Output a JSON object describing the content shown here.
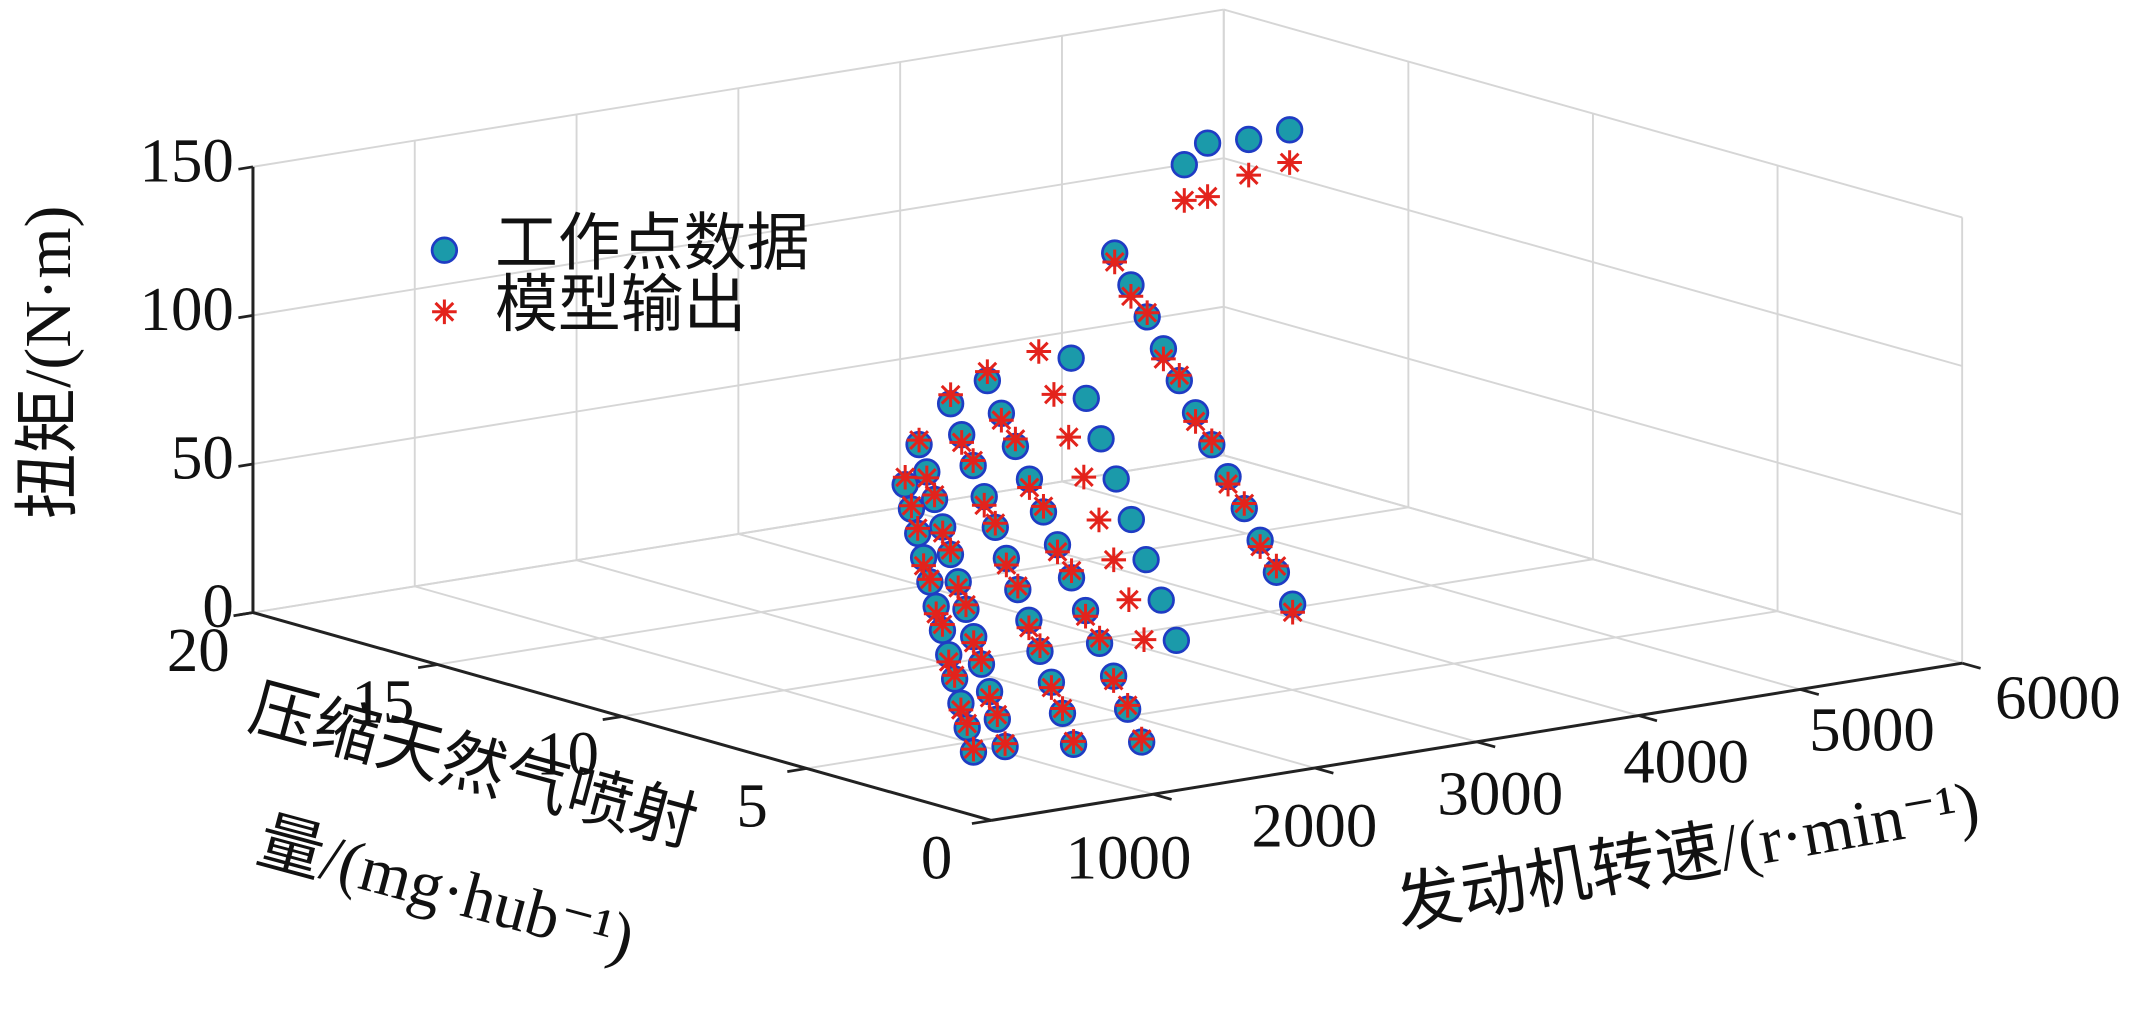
{
  "chart_data": {
    "type": "scatter3d",
    "xlabel": "发动机转速/(r·min⁻¹)",
    "ylabel": [
      "压缩天然气喷射",
      "量/(mg·hub⁻¹)"
    ],
    "zlabel": "扭矩/(N·m)",
    "xlim": [
      0,
      6000
    ],
    "ylim": [
      0,
      20
    ],
    "zlim": [
      0,
      150
    ],
    "xticks": [
      1000,
      2000,
      3000,
      4000,
      5000,
      6000
    ],
    "yticks": [
      0,
      5,
      10,
      15,
      20
    ],
    "zticks": [
      0,
      50,
      100,
      150
    ],
    "grid": true,
    "legend": "upper left",
    "series": [
      {
        "name": "工作点数据",
        "marker": "o",
        "color": "#1b9aaa",
        "edgecolor": "#1f3cc4",
        "x": [
          800,
          800,
          800,
          800,
          800,
          800,
          800,
          800,
          800,
          800,
          800,
          800,
          1000,
          1000,
          1000,
          1000,
          1000,
          1000,
          1000,
          1000,
          1000,
          1000,
          1000,
          1000,
          1300,
          1300,
          1300,
          1300,
          1300,
          1300,
          1300,
          1300,
          1300,
          1300,
          1300,
          1300,
          1600,
          1600,
          1600,
          1600,
          1600,
          1600,
          1600,
          1600,
          1600,
          1600,
          1600,
          1600,
          2200,
          2200,
          2200,
          2200,
          2200,
          2200,
          2200,
          2200,
          2800,
          2800,
          2800,
          2800,
          2800,
          2800,
          2800,
          2800,
          2800,
          2800,
          2800,
          2800,
          4387,
          4531,
          4785,
          5038
        ],
        "y": [
          5.84,
          5.67,
          5.5,
          5.34,
          5.17,
          5.0,
          4.83,
          4.66,
          4.5,
          4.33,
          4.16,
          3.99,
          6.34,
          6.13,
          5.92,
          5.7,
          5.49,
          5.28,
          5.07,
          4.86,
          4.65,
          4.43,
          4.22,
          4.01,
          6.8,
          6.5,
          6.19,
          5.89,
          5.59,
          5.29,
          4.98,
          4.68,
          4.38,
          4.07,
          3.77,
          3.47,
          7.12,
          6.74,
          6.36,
          5.98,
          5.6,
          5.22,
          4.84,
          4.46,
          4.08,
          3.7,
          3.32,
          2.94,
          7.48,
          7.07,
          6.67,
          6.26,
          5.85,
          5.45,
          5.04,
          4.63,
          8.93,
          8.49,
          8.05,
          7.61,
          7.18,
          6.74,
          6.3,
          5.86,
          5.42,
          4.99,
          4.55,
          4.11,
          14,
          14,
          14,
          14
        ],
        "z": [
          85.5,
          77.9,
          70.3,
          62.7,
          55.1,
          47.5,
          40.0,
          32.4,
          24.8,
          17.2,
          9.6,
          2.0,
          95.5,
          87.0,
          78.5,
          70.0,
          61.5,
          53.0,
          44.5,
          36.0,
          27.5,
          19.0,
          10.5,
          2.0,
          105.0,
          95.6,
          86.3,
          76.9,
          67.6,
          58.2,
          48.8,
          39.5,
          30.1,
          20.8,
          11.4,
          2.0,
          109.0,
          99.3,
          89.5,
          79.8,
          70.1,
          60.4,
          50.6,
          40.9,
          31.2,
          21.5,
          11.7,
          2.0,
          110.0,
          97.9,
          85.7,
          73.6,
          61.4,
          49.3,
          37.1,
          25.0,
          135.0,
          125.8,
          116.6,
          107.4,
          98.2,
          88.9,
          79.7,
          70.5,
          61.3,
          52.1,
          42.9,
          33.7,
          133,
          139,
          138,
          139
        ]
      },
      {
        "name": "模型输出",
        "marker": "*",
        "color": "#e3231c",
        "x": [
          800,
          800,
          800,
          800,
          800,
          800,
          800,
          800,
          800,
          800,
          800,
          800,
          1000,
          1000,
          1000,
          1000,
          1000,
          1000,
          1000,
          1000,
          1000,
          1000,
          1000,
          1000,
          1300,
          1300,
          1300,
          1300,
          1300,
          1300,
          1300,
          1300,
          1300,
          1300,
          1300,
          1300,
          1600,
          1600,
          1600,
          1600,
          1600,
          1600,
          1600,
          1600,
          1600,
          1600,
          1600,
          1600,
          2000,
          2000,
          2000,
          2000,
          2000,
          2000,
          2000,
          2000,
          2800,
          2800,
          2800,
          2800,
          2800,
          2800,
          2800,
          2800,
          2800,
          2800,
          2800,
          2800,
          4387,
          4531,
          4785,
          5038
        ],
        "y": [
          5.84,
          5.67,
          5.5,
          5.34,
          5.17,
          5.0,
          4.83,
          4.66,
          4.5,
          4.33,
          4.16,
          3.99,
          6.34,
          6.13,
          5.92,
          5.7,
          5.49,
          5.28,
          5.07,
          4.86,
          4.65,
          4.43,
          4.22,
          4.01,
          6.8,
          6.5,
          6.19,
          5.89,
          5.59,
          5.29,
          4.98,
          4.68,
          4.38,
          4.07,
          3.77,
          3.47,
          7.12,
          6.74,
          6.36,
          5.98,
          5.6,
          5.22,
          4.84,
          4.46,
          4.08,
          3.7,
          3.32,
          2.94,
          7.48,
          7.07,
          6.67,
          6.26,
          5.85,
          5.45,
          5.04,
          4.63,
          8.93,
          8.49,
          8.05,
          7.61,
          7.18,
          6.74,
          6.3,
          5.86,
          5.42,
          4.99,
          4.55,
          4.11,
          14,
          14,
          14,
          14
        ],
        "z": [
          88,
          79,
          72,
          60,
          56,
          45,
          42,
          30,
          26,
          15,
          11,
          3,
          97,
          85,
          80,
          68,
          63,
          51,
          46,
          34,
          29,
          17,
          12,
          3,
          108,
          93,
          88,
          74,
          69,
          56,
          50,
          37,
          32,
          19,
          13,
          3,
          112,
          97,
          92,
          77,
          72,
          58,
          53,
          39,
          33,
          20,
          13,
          3,
          114,
          101,
          88,
          76,
          63,
          51,
          39,
          27,
          132,
          122,
          118,
          104,
          100,
          86,
          81,
          68,
          63,
          50,
          45,
          31,
          121,
          121,
          126,
          128
        ]
      }
    ]
  }
}
